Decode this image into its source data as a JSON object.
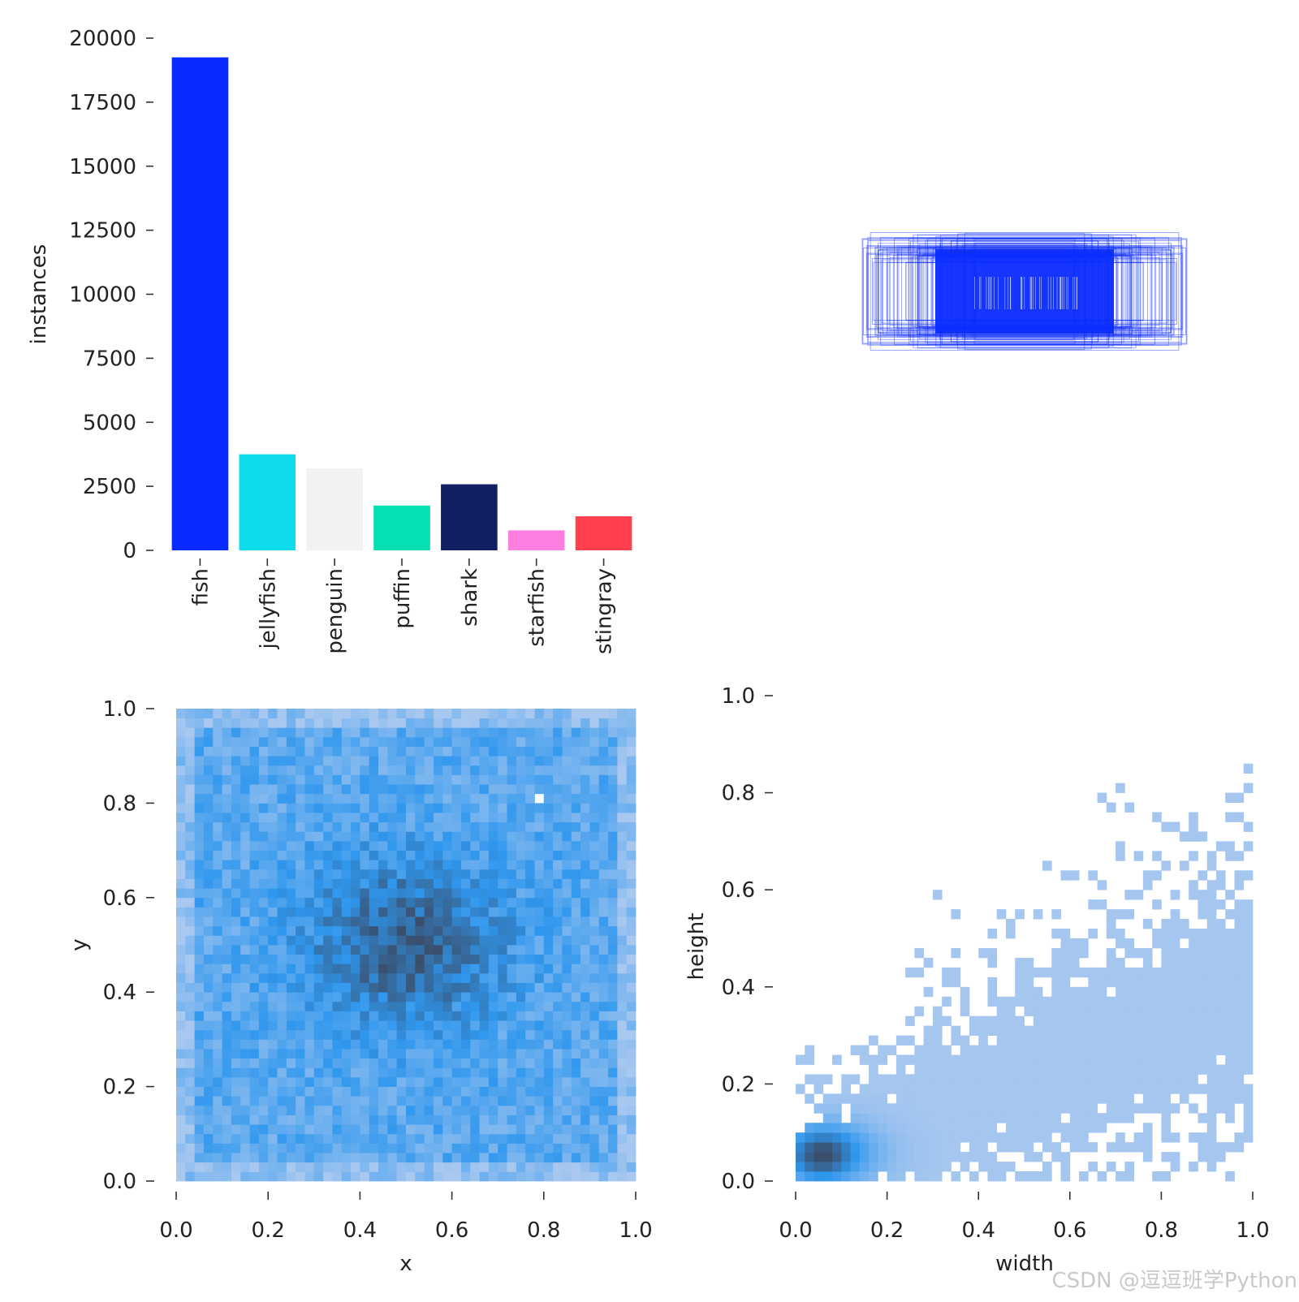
{
  "watermark": "CSDN @逗逗班学Python",
  "chart_data": [
    {
      "panel": "class-instances",
      "type": "bar",
      "ylabel": "instances",
      "ylim": [
        0,
        20000
      ],
      "yticks": [
        "0",
        "2500",
        "5000",
        "7500",
        "10000",
        "12500",
        "15000",
        "17500",
        "20000"
      ],
      "categories": [
        "fish",
        "jellyfish",
        "penguin",
        "puffin",
        "shark",
        "starfish",
        "stingray"
      ],
      "values": [
        19250,
        3750,
        3200,
        1750,
        2580,
        780,
        1330
      ],
      "colors": [
        "#0a2bff",
        "#0edbeb",
        "#f2f2f2",
        "#05dfb4",
        "#121f63",
        "#ff7fe0",
        "#ff3f4d"
      ]
    },
    {
      "panel": "box-overlay",
      "type": "other",
      "color": "#0a2bff",
      "grid": false
    },
    {
      "panel": "xy-histogram",
      "type": "heatmap",
      "xlabel": "x",
      "ylabel": "y",
      "xlim": [
        0,
        1
      ],
      "ylim": [
        0,
        1
      ],
      "xticks": [
        "0.0",
        "0.2",
        "0.4",
        "0.6",
        "0.8",
        "1.0"
      ],
      "yticks": [
        "0.0",
        "0.2",
        "0.4",
        "0.6",
        "0.8",
        "1.0"
      ],
      "center": [
        0.5,
        0.5
      ],
      "colors": {
        "low": "#a9c8ef",
        "mid": "#2f97ee",
        "high": "#3a4f6c"
      }
    },
    {
      "panel": "wh-histogram",
      "type": "heatmap",
      "xlabel": "width",
      "ylabel": "height",
      "xlim": [
        0,
        1
      ],
      "ylim": [
        0,
        1
      ],
      "xticks": [
        "0.0",
        "0.2",
        "0.4",
        "0.6",
        "0.8",
        "1.0"
      ],
      "yticks": [
        "0.0",
        "0.2",
        "0.4",
        "0.6",
        "0.8",
        "1.0"
      ],
      "peak": [
        0.05,
        0.05
      ],
      "colors": {
        "low": "#a9c8ef",
        "mid": "#2f97ee",
        "high": "#3a4f6c"
      }
    }
  ]
}
